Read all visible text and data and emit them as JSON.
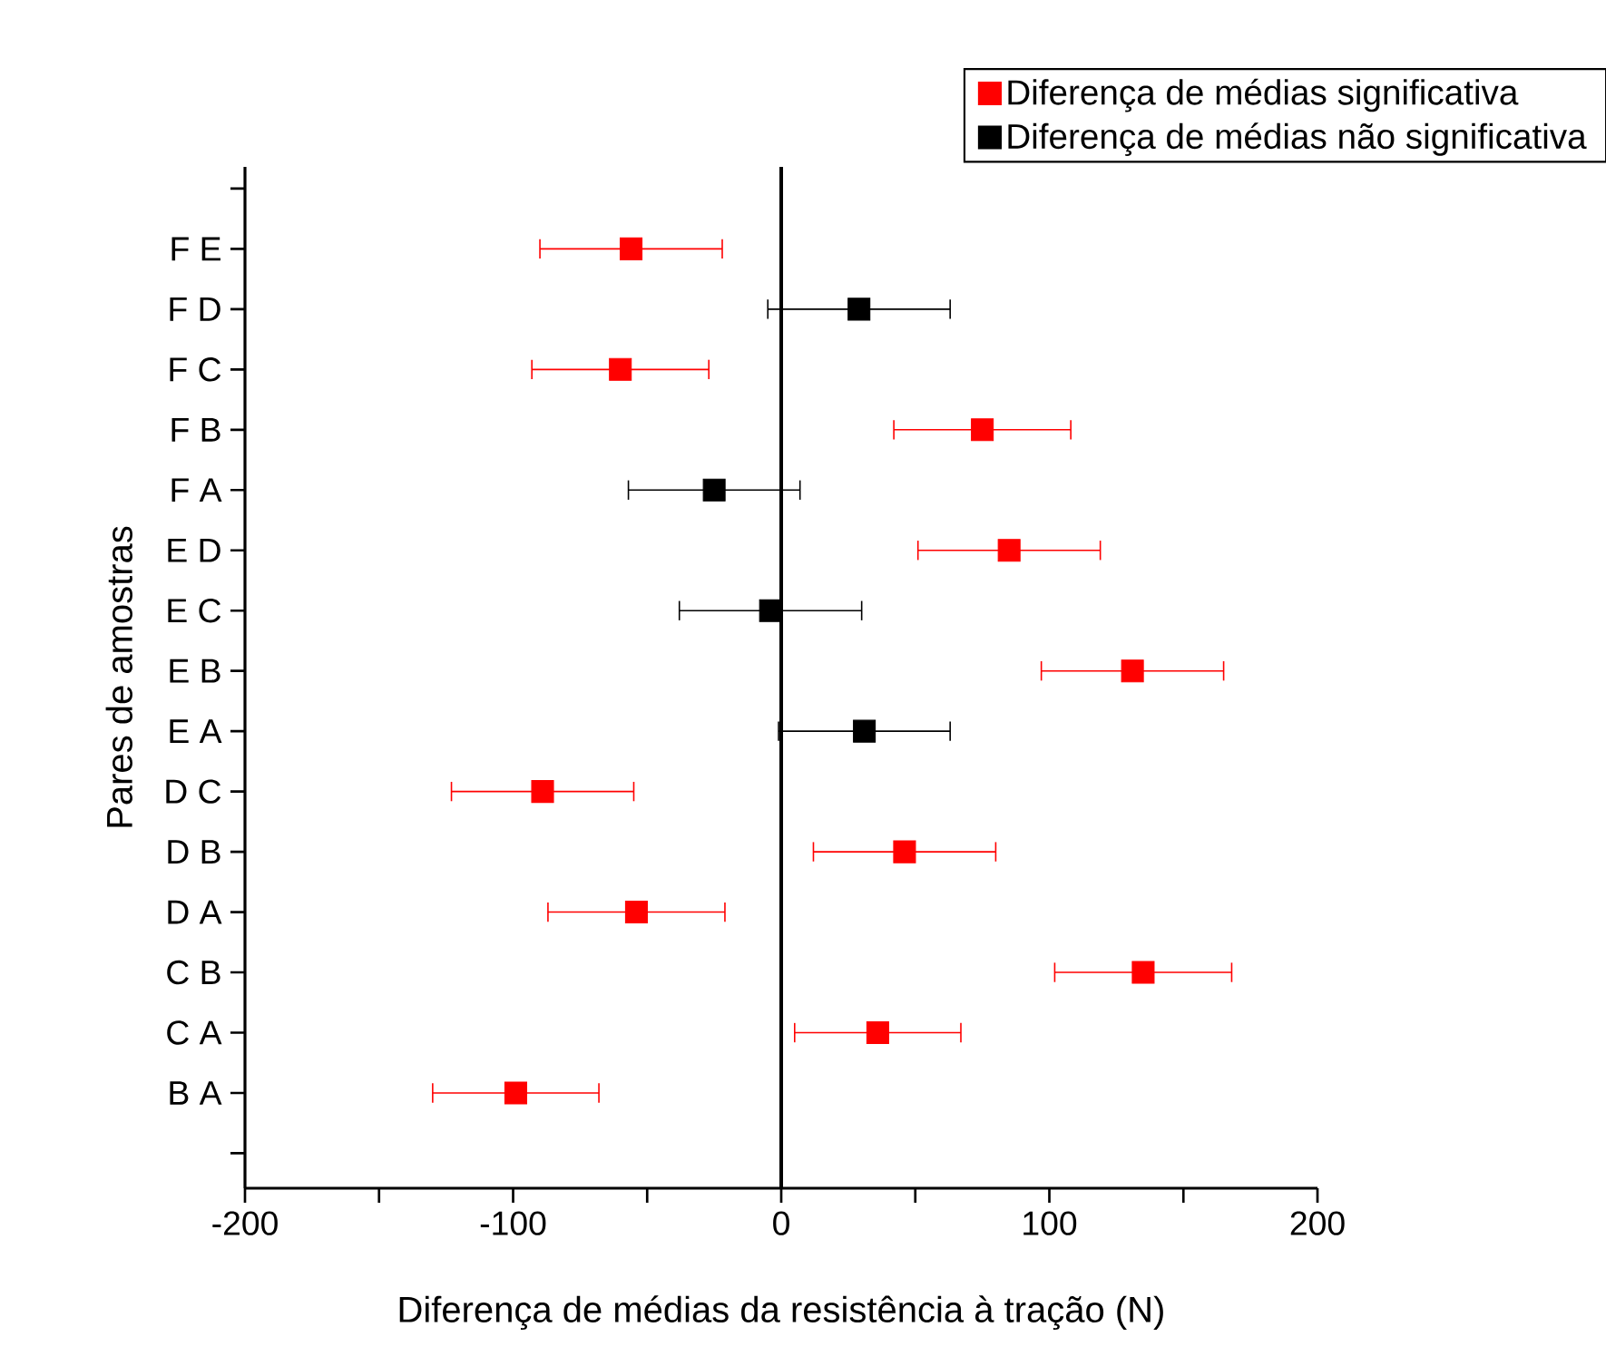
{
  "chart_data": {
    "type": "scatter",
    "orientation": "horizontal",
    "xlabel": "Diferença de médias da resistência à tração (N)",
    "ylabel": "Pares de amostras",
    "categories": [
      "F E",
      "F D",
      "F C",
      "F B",
      "F A",
      "E D",
      "E C",
      "E B",
      "E A",
      "D C",
      "D B",
      "D A",
      "C B",
      "C A",
      "B A"
    ],
    "series": [
      {
        "name": "Diferença de médias significativa",
        "color": "#ff0000",
        "values": [
          -56,
          null,
          -60,
          75,
          null,
          85,
          null,
          131,
          null,
          -89,
          46,
          -54,
          135,
          36,
          -99
        ],
        "errors": [
          34,
          null,
          33,
          33,
          null,
          34,
          null,
          34,
          null,
          34,
          34,
          33,
          33,
          31,
          31
        ]
      },
      {
        "name": "Diferença de médias não significativa",
        "color": "#000000",
        "values": [
          null,
          29,
          null,
          null,
          -25,
          null,
          -4,
          null,
          31,
          null,
          null,
          null,
          null,
          null,
          null
        ],
        "errors": [
          null,
          34,
          null,
          null,
          32,
          null,
          34,
          null,
          32,
          null,
          null,
          null,
          null,
          null,
          null
        ]
      }
    ],
    "xlim": [
      -200,
      200
    ],
    "xticks": [
      -200,
      -100,
      0,
      100,
      200
    ],
    "ref_lines": [
      {
        "axis": "x",
        "value": 0,
        "color": "#000000"
      }
    ],
    "legend": "top right",
    "marker": "square",
    "grid": false
  }
}
